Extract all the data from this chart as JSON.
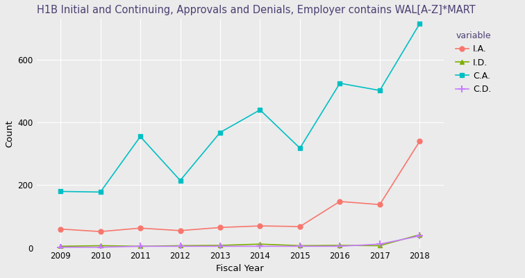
{
  "title": "H1B Initial and Continuing, Approvals and Denials, Employer contains WAL[A-Z]*MART",
  "xlabel": "Fiscal Year",
  "ylabel": "Count",
  "legend_title": "variable",
  "years": [
    2009,
    2010,
    2011,
    2012,
    2013,
    2014,
    2015,
    2016,
    2017,
    2018
  ],
  "series": {
    "I.A.": {
      "values": [
        60,
        52,
        63,
        55,
        65,
        70,
        68,
        148,
        138,
        340
      ],
      "color": "#F8766D",
      "marker": "o",
      "markersize": 5,
      "zorder": 3
    },
    "I.D.": {
      "values": [
        5,
        7,
        5,
        7,
        8,
        12,
        7,
        8,
        7,
        42
      ],
      "color": "#7CAE00",
      "marker": "^",
      "markersize": 5,
      "zorder": 3
    },
    "C.A.": {
      "values": [
        180,
        178,
        355,
        215,
        368,
        440,
        318,
        525,
        502,
        715
      ],
      "color": "#00BFC4",
      "marker": "s",
      "markersize": 5,
      "zorder": 4
    },
    "C.D.": {
      "values": [
        2,
        2,
        5,
        5,
        5,
        5,
        5,
        5,
        12,
        38
      ],
      "color": "#C77CFF",
      "marker": "P",
      "markersize": 5,
      "zorder": 3
    }
  },
  "plot_bg_color": "#EBEBEB",
  "fig_bg_color": "#EBEBEB",
  "grid_color": "#FFFFFF",
  "title_color": "#4B3F72",
  "ylim": [
    0,
    730
  ],
  "yticks": [
    0,
    200,
    400,
    600
  ],
  "title_fontsize": 10.5,
  "axis_label_fontsize": 9.5,
  "tick_fontsize": 8.5,
  "legend_fontsize": 9
}
